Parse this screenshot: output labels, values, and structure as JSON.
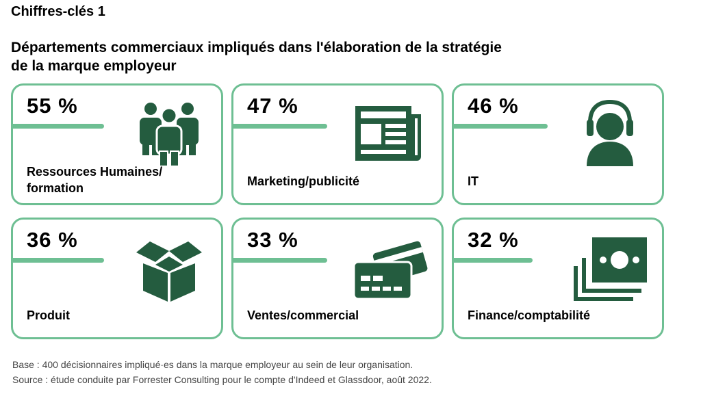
{
  "header": {
    "kicker": "Chiffres-clés 1",
    "title_line1": "Départements commerciaux impliqués dans l'élaboration de la stratégie",
    "title_line2": "de la marque employeur"
  },
  "colors": {
    "accent": "#6ebf93",
    "icon": "#245c3f"
  },
  "chart_data": {
    "type": "table",
    "title": "Départements commerciaux impliqués dans l'élaboration de la stratégie de la marque employeur",
    "unit": "%",
    "items": [
      {
        "pct": "55 %",
        "value": 55,
        "label_lines": [
          "Ressources Humaines/",
          "formation"
        ],
        "icon": "people-group-icon"
      },
      {
        "pct": "47 %",
        "value": 47,
        "label_lines": [
          "Marketing/publicité"
        ],
        "icon": "newspaper-icon"
      },
      {
        "pct": "46 %",
        "value": 46,
        "label_lines": [
          "IT"
        ],
        "icon": "headset-user-icon"
      },
      {
        "pct": "36 %",
        "value": 36,
        "label_lines": [
          "Produit"
        ],
        "icon": "open-box-icon"
      },
      {
        "pct": "33 %",
        "value": 33,
        "label_lines": [
          "Ventes/commercial"
        ],
        "icon": "credit-cards-icon"
      },
      {
        "pct": "32 %",
        "value": 32,
        "label_lines": [
          "Finance/comptabilité"
        ],
        "icon": "banknotes-icon"
      }
    ]
  },
  "footer": {
    "base": "Base : 400 décisionnaires impliqué·es dans la marque employeur au sein de leur organisation.",
    "source": "Source : étude conduite par Forrester Consulting pour le compte d'Indeed et Glassdoor, août 2022."
  }
}
